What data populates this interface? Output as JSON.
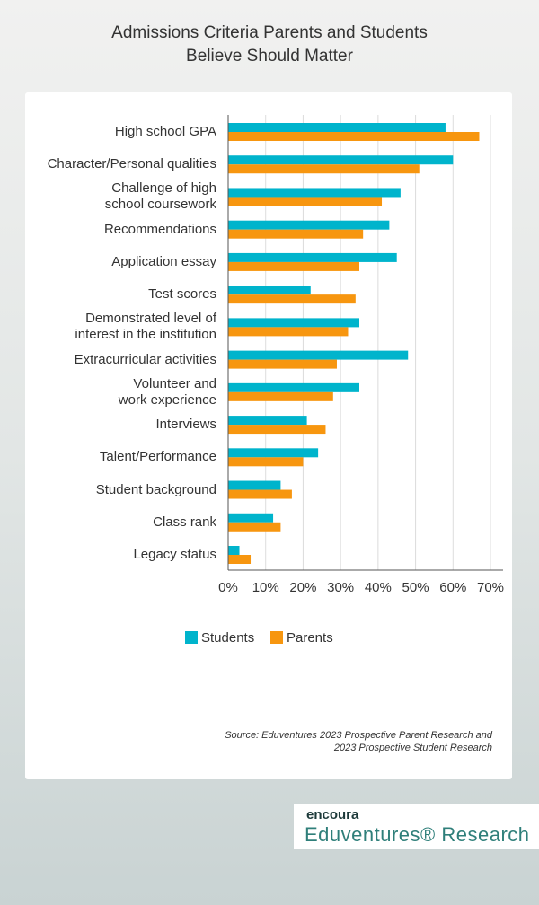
{
  "chart_data": {
    "type": "bar",
    "orientation": "horizontal",
    "title": "Admissions Criteria Parents and Students\nBelieve Should Matter",
    "categories": [
      "High school GPA",
      "Character/Personal qualities",
      "Challenge of high\nschool coursework",
      "Recommendations",
      "Application essay",
      "Test scores",
      "Demonstrated level of\ninterest in the institution",
      "Extracurricular activities",
      "Volunteer and\nwork experience",
      "Interviews",
      "Talent/Performance",
      "Student background",
      "Class rank",
      "Legacy status"
    ],
    "series": [
      {
        "name": "Students",
        "color": "#00b4cc",
        "values": [
          58,
          60,
          46,
          43,
          45,
          22,
          35,
          48,
          35,
          21,
          24,
          14,
          12,
          3
        ]
      },
      {
        "name": "Parents",
        "color": "#f7960f",
        "values": [
          67,
          51,
          41,
          36,
          35,
          34,
          32,
          29,
          28,
          26,
          20,
          17,
          14,
          6
        ]
      }
    ],
    "xlim": [
      0,
      70
    ],
    "xticks": [
      {
        "value": 0,
        "label": "0%"
      },
      {
        "value": 10,
        "label": "10%"
      },
      {
        "value": 20,
        "label": "20%"
      },
      {
        "value": 30,
        "label": "30%"
      },
      {
        "value": 40,
        "label": "40%"
      },
      {
        "value": 50,
        "label": "50%"
      },
      {
        "value": 60,
        "label": "60%"
      },
      {
        "value": 70,
        "label": "70%"
      }
    ],
    "grid": true,
    "legend": "bottom",
    "source": "Source: Eduventures 2023 Prospective Parent Research and\n2023 Prospective Student Research",
    "logo": {
      "brand": "encoura",
      "product": "Eduventures® Research"
    }
  }
}
